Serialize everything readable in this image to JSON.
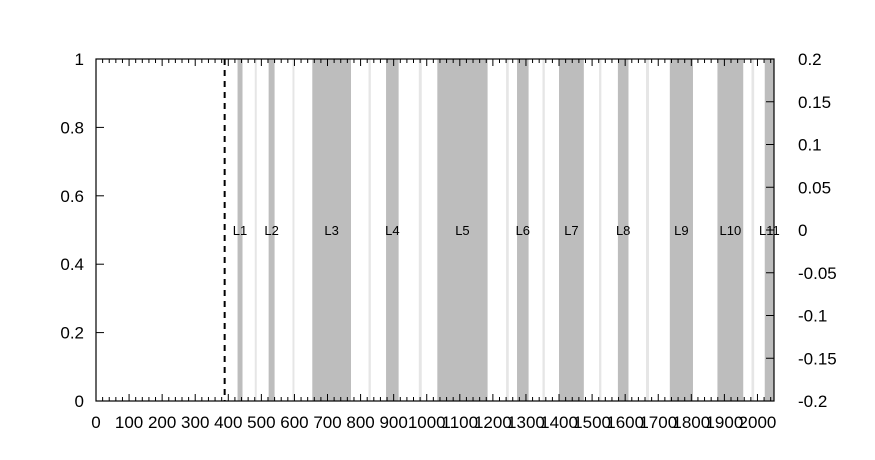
{
  "chart_data": {
    "type": "bar",
    "title": "",
    "xlabel": "",
    "ylabel": "",
    "xlim": [
      0,
      2050
    ],
    "ylim": [
      0,
      1
    ],
    "y2lim": [
      -0.2,
      0.2
    ],
    "x_ticks": [
      0,
      100,
      200,
      300,
      400,
      500,
      600,
      700,
      800,
      900,
      1000,
      1100,
      1200,
      1300,
      1400,
      1500,
      1600,
      1700,
      1800,
      1900,
      2000
    ],
    "x_tick_labels": [
      "0",
      "100",
      "200",
      "300",
      "400",
      "500",
      "600",
      "700",
      "800",
      "900",
      "1000",
      "1100",
      "1200",
      "1300",
      "1400",
      "1500",
      "1600",
      "1700",
      "1800",
      "1900",
      "2000"
    ],
    "y_ticks": [
      0,
      0.2,
      0.4,
      0.6,
      0.8,
      1
    ],
    "y_tick_labels": [
      "0",
      "0.2",
      "0.4",
      "0.6",
      "0.8",
      "1"
    ],
    "y2_ticks": [
      0.2,
      0.15,
      0.1,
      0.05,
      0,
      -0.05,
      -0.1,
      -0.15,
      -0.2
    ],
    "y2_tick_labels": [
      "0.2",
      "0.15",
      "0.1",
      "0.05",
      "0",
      "-0.05",
      "-0.1",
      "-0.15",
      "-0.2"
    ],
    "grid": false,
    "legend": "none",
    "dashed_line_x": 389,
    "dashed_line_color": "#000000",
    "dark_band_color": "#bdbdbd",
    "light_band_color": "#e6e6e6",
    "dark_bands": [
      {
        "x0": 428,
        "x1": 443,
        "label": "L1"
      },
      {
        "x0": 522,
        "x1": 540,
        "label": "L2"
      },
      {
        "x0": 654,
        "x1": 771,
        "label": "L3"
      },
      {
        "x0": 877,
        "x1": 915,
        "label": "L4"
      },
      {
        "x0": 1032,
        "x1": 1184,
        "label": "L5"
      },
      {
        "x0": 1273,
        "x1": 1308,
        "label": "L6"
      },
      {
        "x0": 1400,
        "x1": 1475,
        "label": "L7"
      },
      {
        "x0": 1578,
        "x1": 1610,
        "label": "L8"
      },
      {
        "x0": 1735,
        "x1": 1805,
        "label": "L9"
      },
      {
        "x0": 1879,
        "x1": 1957,
        "label": "L10"
      },
      {
        "x0": 2022,
        "x1": 2050,
        "label": "L11"
      }
    ],
    "light_bands": [
      {
        "x0": 480,
        "x1": 486
      },
      {
        "x0": 594,
        "x1": 600
      },
      {
        "x0": 824,
        "x1": 831
      },
      {
        "x0": 976,
        "x1": 985
      },
      {
        "x0": 1240,
        "x1": 1248
      },
      {
        "x0": 1350,
        "x1": 1357
      },
      {
        "x0": 1521,
        "x1": 1528
      },
      {
        "x0": 1663,
        "x1": 1672
      },
      {
        "x0": 1982,
        "x1": 1990
      }
    ]
  }
}
